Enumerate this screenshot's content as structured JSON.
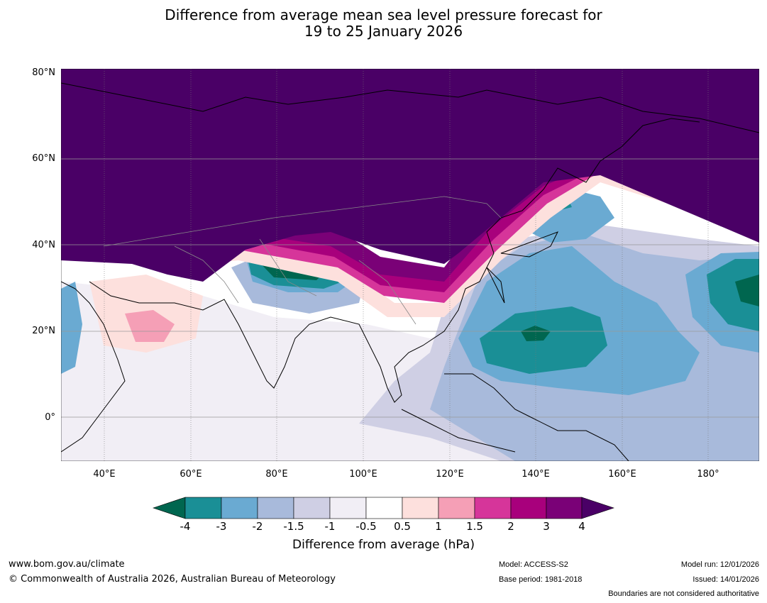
{
  "title": {
    "line1": "Difference from average mean sea level pressure forecast for",
    "line2": "19 to 25 January 2026"
  },
  "map": {
    "lat_labels": [
      "80°N",
      "60°N",
      "40°N",
      "20°N",
      "0°"
    ],
    "lon_labels": [
      "40°E",
      "60°E",
      "80°E",
      "100°E",
      "120°E",
      "140°E",
      "160°E",
      "180°"
    ]
  },
  "colorbar": {
    "ticks": [
      "-4",
      "-3",
      "-2",
      "-1.5",
      "-1",
      "-0.5",
      "0.5",
      "1",
      "1.5",
      "2",
      "3",
      "4"
    ],
    "label": "Difference from average (hPa)",
    "colors": {
      "lt_minus4": "#00664f",
      "m4_m3": "#1a8f96",
      "m3_m2": "#6aaad2",
      "m2_m1_5": "#a8badb",
      "m1_5_m1": "#cfcfe4",
      "m1_m0_5": "#f1eef5",
      "m0_5_0_5": "#ffffff",
      "p0_5_1": "#fde0dd",
      "p1_1_5": "#f59fb6",
      "p1_5_2": "#d6359a",
      "p2_3": "#a8007c",
      "p3_4": "#7a0177",
      "gt_4": "#4a0066"
    }
  },
  "footer": {
    "url": "www.bom.gov.au/climate",
    "copyright": "© Commonwealth of Australia 2026, Australian Bureau of Meteorology",
    "model": "Model: ACCESS-S2",
    "base_period": "Base period: 1981-2018",
    "model_run": "Model run: 12/01/2026",
    "issued": "Issued: 14/01/2026",
    "boundaries": "Boundaries are not considered authoritative"
  }
}
